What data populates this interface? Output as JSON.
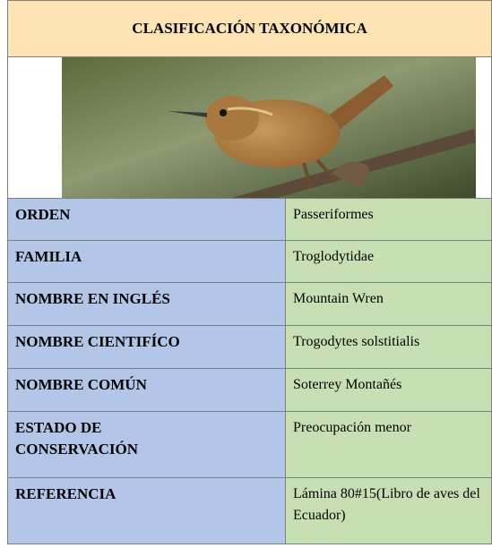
{
  "header": {
    "title": "CLASIFICACIÓN TAXONÓMICA"
  },
  "table": {
    "rows": [
      [
        "ORDEN",
        "Passeriformes"
      ],
      [
        "FAMILIA",
        "Troglodytidae"
      ],
      [
        "NOMBRE EN INGLÉS",
        "Mountain Wren"
      ],
      [
        "NOMBRE CIENTIFÍCO",
        "Trogodytes solstitialis"
      ],
      [
        "NOMBRE COMÚN",
        "Soterrey Montañés"
      ],
      [
        "ESTADO DE CONSERVACIÓN",
        "Preocupación menor"
      ],
      [
        "REFERENCIA",
        "Lámina 80#15(Libro de aves del Ecuador)"
      ]
    ]
  }
}
